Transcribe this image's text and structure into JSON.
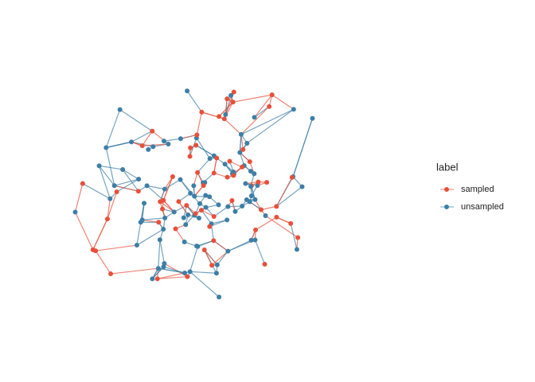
{
  "chart_data": {
    "type": "network",
    "legend_title": "label",
    "series": [
      {
        "name": "sampled",
        "color": "#e8503a"
      },
      {
        "name": "unsampled",
        "color": "#3d7ea6"
      }
    ],
    "legend_position": "right"
  }
}
